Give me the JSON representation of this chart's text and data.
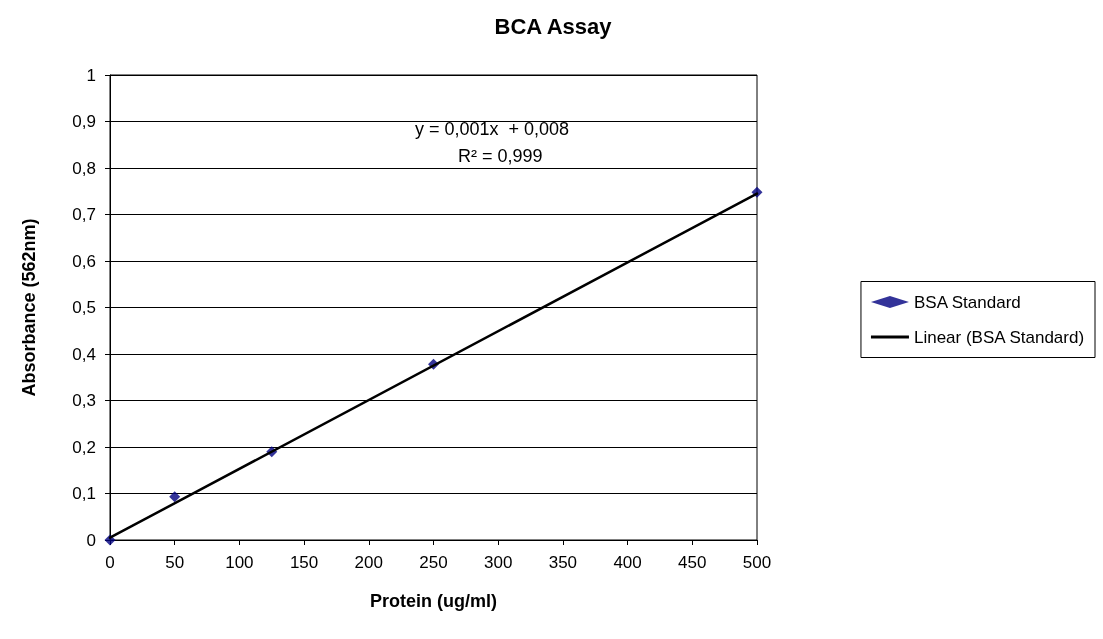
{
  "chart_data": {
    "type": "scatter",
    "title": "BCA Assay",
    "xlabel": "Protein (ug/ml)",
    "ylabel": "Absorbance (562nm)",
    "annotations": [
      "y = 0,001x  + 0,008",
      "R² = 0,999"
    ],
    "series": [
      {
        "name": "BSA Standard",
        "color": "#000080",
        "marker": "diamond",
        "x": [
          0,
          50,
          125,
          250,
          500
        ],
        "values": [
          0,
          0.093,
          0.19,
          0.378,
          0.748
        ]
      },
      {
        "name": "Linear (BSA Standard)",
        "type": "line",
        "color": "#000000",
        "marker": "none",
        "x": [
          0,
          500
        ],
        "values": [
          0.005,
          0.745
        ]
      }
    ],
    "xlim": [
      0,
      500
    ],
    "xticks": [
      0,
      50,
      100,
      150,
      200,
      250,
      300,
      350,
      400,
      450,
      500
    ],
    "ylim": [
      0,
      1
    ],
    "yticks": [
      0,
      {
        "value": 0.1,
        "label": "0,1"
      },
      {
        "value": 0.2,
        "label": "0,2"
      },
      {
        "value": 0.3,
        "label": "0,3"
      },
      {
        "value": 0.4,
        "label": "0,4"
      },
      {
        "value": 0.5,
        "label": "0,5"
      },
      {
        "value": 0.6,
        "label": "0,6"
      },
      {
        "value": 0.7,
        "label": "0,7"
      },
      {
        "value": 0.8,
        "label": "0,8"
      },
      {
        "value": 0.9,
        "label": "0,9"
      },
      1
    ],
    "grid": "y",
    "legend": "right"
  }
}
